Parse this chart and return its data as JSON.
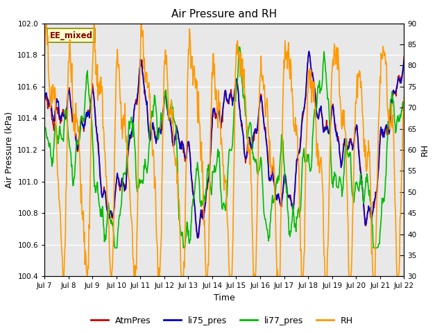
{
  "title": "Air Pressure and RH",
  "xlabel": "Time",
  "ylabel_left": "Air Pressure (kPa)",
  "ylabel_right": "RH",
  "ylim_left": [
    100.4,
    102.0
  ],
  "ylim_right": [
    30,
    90
  ],
  "yticks_left": [
    100.4,
    100.6,
    100.8,
    101.0,
    101.2,
    101.4,
    101.6,
    101.8,
    102.0
  ],
  "yticks_right": [
    30,
    35,
    40,
    45,
    50,
    55,
    60,
    65,
    70,
    75,
    80,
    85,
    90
  ],
  "xtick_labels": [
    "Jul 7",
    "Jul 8",
    "Jul 9",
    "Jul 10",
    "Jul 11",
    "Jul 12",
    "Jul 13",
    "Jul 14",
    "Jul 15",
    "Jul 16",
    "Jul 17",
    "Jul 18",
    "Jul 19",
    "Jul 20",
    "Jul 21",
    "Jul 22"
  ],
  "n_days": 15,
  "n_per_day": 48,
  "colors": {
    "atm": "#cc0000",
    "li75": "#0000cc",
    "li77": "#00bb00",
    "rh": "#ff9900"
  },
  "line_width": 1.2,
  "bg_color": "#e8e8e8",
  "label_box_text": "EE_mixed",
  "label_box_facecolor": "#ffffcc",
  "label_box_edgecolor": "#888800",
  "legend_labels": [
    "AtmPres",
    "li75_pres",
    "li77_pres",
    "RH"
  ],
  "figsize": [
    6.4,
    4.8
  ],
  "dpi": 100
}
